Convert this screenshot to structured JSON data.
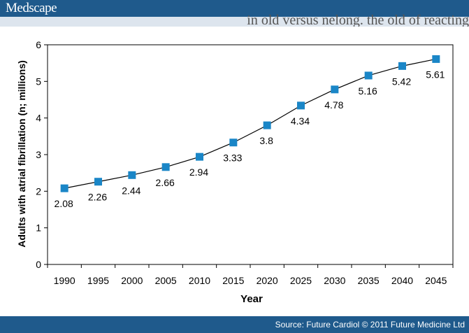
{
  "header": {
    "logo": "Medscape",
    "partial_title": "in old versus nelong. the old of reacting"
  },
  "footer": {
    "source": "Source: Future Cardiol © 2011 Future Medicine Ltd"
  },
  "chart_data": {
    "type": "line",
    "title": "",
    "xlabel": "Year",
    "ylabel": "Adults with atrial fibrillation (n; millions)",
    "x": [
      1990,
      1995,
      2000,
      2005,
      2010,
      2015,
      2020,
      2025,
      2030,
      2035,
      2040,
      2045
    ],
    "ylim": [
      0,
      6
    ],
    "yticks": [
      0,
      1,
      2,
      3,
      4,
      5,
      6
    ],
    "grid": false,
    "marker": "square",
    "colors": {
      "marker": "#1a86c7",
      "line": "#000000"
    },
    "series": [
      {
        "values": [
          2.08,
          2.26,
          2.44,
          2.66,
          2.94,
          3.33,
          3.8,
          4.34,
          4.78,
          5.16,
          5.42,
          5.61
        ]
      }
    ],
    "data_labels": [
      "2.08",
      "2.26",
      "2.44",
      "2.66",
      "2.94",
      "3.33",
      "3.8",
      "4.34",
      "4.78",
      "5.16",
      "5.42",
      "5.61"
    ]
  }
}
